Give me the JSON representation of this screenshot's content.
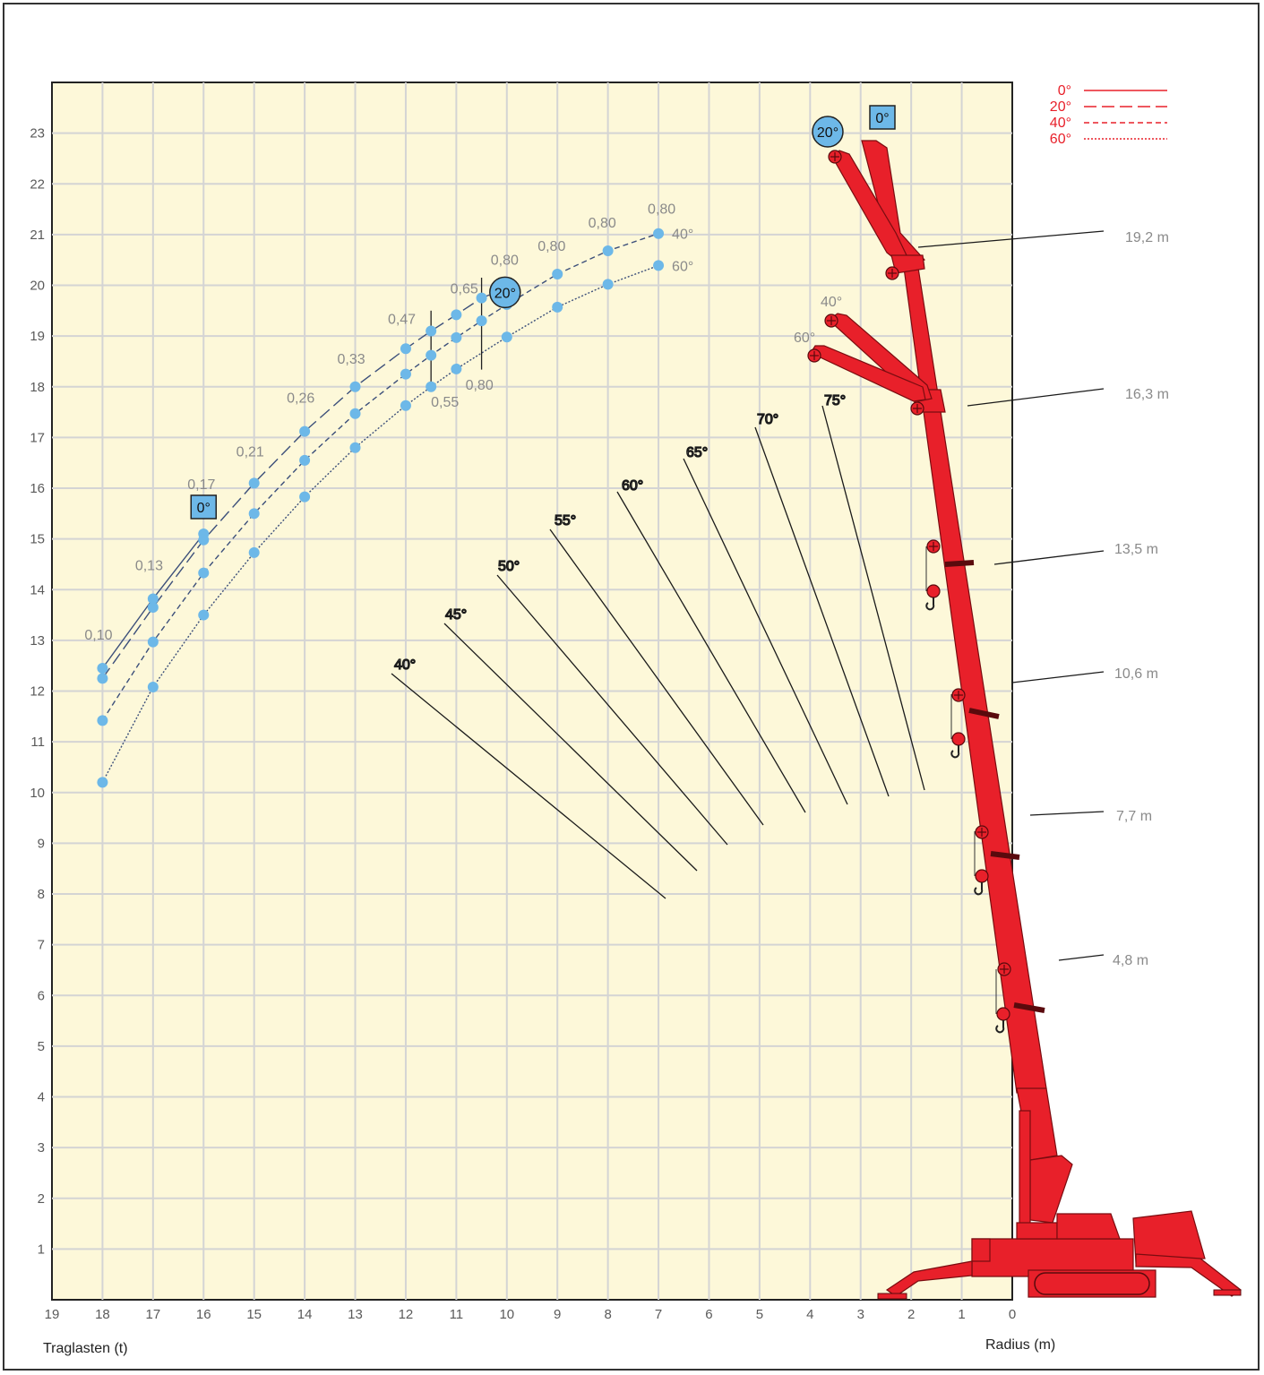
{
  "chart_data": {
    "type": "line",
    "title": "",
    "xlabel": "Traglasten (t)",
    "ylabel": "Radius (m)",
    "x_ticks": [
      19,
      18,
      17,
      16,
      15,
      14,
      13,
      12,
      11,
      10,
      9,
      8,
      7,
      6,
      5,
      4,
      3,
      2,
      1,
      0
    ],
    "y_ticks": [
      1,
      2,
      3,
      4,
      5,
      6,
      7,
      8,
      9,
      10,
      11,
      12,
      13,
      14,
      15,
      16,
      17,
      18,
      19,
      20,
      21,
      22,
      23
    ],
    "xlim": [
      19,
      0
    ],
    "ylim": [
      0,
      24
    ],
    "grid": true,
    "legend": {
      "position": "top-right",
      "entries": [
        {
          "label": "0°",
          "style": "solid"
        },
        {
          "label": "20°",
          "style": "long-dash"
        },
        {
          "label": "40°",
          "style": "dash"
        },
        {
          "label": "60°",
          "style": "dotted"
        }
      ]
    },
    "series": [
      {
        "name": "0°",
        "style": "solid",
        "x": [
          18,
          17,
          16
        ],
        "y": [
          12.45,
          13.82,
          15.1
        ]
      },
      {
        "name": "20°",
        "style": "long-dash",
        "x": [
          18,
          17,
          16,
          15,
          14,
          13,
          12,
          11.5,
          11,
          10.5,
          10
        ],
        "y": [
          12.25,
          13.65,
          14.98,
          16.1,
          17.12,
          18.0,
          18.75,
          19.1,
          19.42,
          19.75,
          19.95
        ]
      },
      {
        "name": "40°",
        "style": "dash",
        "x": [
          18,
          17,
          16,
          15,
          14,
          13,
          12,
          11.5,
          11,
          10.5,
          10,
          9,
          8,
          7
        ],
        "y": [
          11.42,
          12.97,
          14.33,
          15.5,
          16.55,
          17.47,
          18.25,
          18.62,
          18.97,
          19.3,
          19.62,
          20.22,
          20.68,
          21.02
        ]
      },
      {
        "name": "60°",
        "style": "dotted",
        "x": [
          18,
          17,
          16,
          15,
          14,
          13,
          12,
          11.5,
          11,
          10,
          9,
          8,
          7
        ],
        "y": [
          10.2,
          12.08,
          13.5,
          14.73,
          15.83,
          16.8,
          17.63,
          18.0,
          18.35,
          18.98,
          19.57,
          20.02,
          20.39
        ]
      }
    ],
    "load_labels": [
      {
        "text": "0,10",
        "x": 18,
        "y": 12.45
      },
      {
        "text": "0,13",
        "x": 17,
        "y": 13.82
      },
      {
        "text": "0,17",
        "x": 16,
        "y": 15.1
      },
      {
        "text": "0,21",
        "x": 15,
        "y": 16.1
      },
      {
        "text": "0,26",
        "x": 14,
        "y": 17.12
      },
      {
        "text": "0,33",
        "x": 13,
        "y": 18.0
      },
      {
        "text": "0,47",
        "x": 12,
        "y": 18.75
      },
      {
        "text": "0,65",
        "x": 10.8,
        "y": 19.42
      },
      {
        "text": "0,80",
        "x": 10,
        "y": 19.95
      },
      {
        "text": "0,80",
        "x": 9,
        "y": 20.22
      },
      {
        "text": "0,80",
        "x": 8,
        "y": 20.68
      },
      {
        "text": "0,80",
        "x": 7,
        "y": 21.02
      },
      {
        "text": "0,55",
        "x": 11.5,
        "y": 18.0
      },
      {
        "text": "0,80",
        "x": 10.5,
        "y": 18.65
      }
    ],
    "curve_end_labels": [
      {
        "text": "40°",
        "x": 7,
        "y": 21.02
      },
      {
        "text": "60°",
        "x": 7,
        "y": 20.39
      }
    ],
    "curve_badges": [
      {
        "text": "0°",
        "shape": "square",
        "x": 16,
        "y": 15.1
      },
      {
        "text": "20°",
        "shape": "circle",
        "x": 10,
        "y": 19.95
      }
    ],
    "boom_angle_labels": [
      "40°",
      "45°",
      "50°",
      "55°",
      "60°",
      "65°",
      "70°",
      "75°"
    ],
    "jib_angle_labels": [
      {
        "text": "0°",
        "shape": "square"
      },
      {
        "text": "20°",
        "shape": "circle"
      },
      {
        "text": "40°",
        "shape": "none"
      },
      {
        "text": "60°",
        "shape": "none"
      }
    ],
    "boom_lengths": [
      "19,2 m",
      "16,3 m",
      "13,5 m",
      "10,6 m",
      "7,7 m",
      "4,8 m"
    ]
  },
  "colors": {
    "plot_bg": "#fdf8d9",
    "grid": "#d4d4d4",
    "marker": "#6db8e8",
    "curve": "#3c4f7a",
    "crane": "#e8202a",
    "legend": "#e8202a",
    "badge_fill": "#6db8e8"
  }
}
